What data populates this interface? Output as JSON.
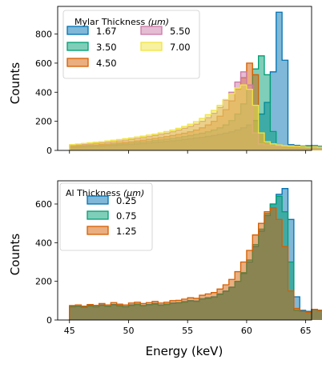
{
  "chart_data": [
    {
      "type": "area",
      "panel": "top",
      "xlabel": "",
      "ylabel": "Counts",
      "xlim": [
        44,
        65.5
      ],
      "ylim": [
        0,
        990
      ],
      "xticks": [
        45,
        50,
        55,
        60,
        65
      ],
      "yticks": [
        0,
        200,
        400,
        600,
        800
      ],
      "show_xtick_labels": false,
      "grid": false,
      "legend": {
        "title_main": "Mylar Thickness ",
        "title_unit": "(μm)",
        "placement": "top-left",
        "columns": 2
      },
      "bin_start": 45,
      "bin_width": 0.5,
      "series": [
        {
          "name": "1.67",
          "color": "#0072B2",
          "values": [
            20,
            22,
            24,
            26,
            28,
            30,
            32,
            34,
            36,
            38,
            40,
            43,
            46,
            50,
            54,
            58,
            62,
            66,
            70,
            75,
            80,
            85,
            90,
            96,
            102,
            110,
            118,
            128,
            140,
            155,
            175,
            205,
            250,
            330,
            540,
            950,
            620,
            40,
            35,
            30,
            32,
            33,
            28,
            26,
            24,
            25,
            22,
            20,
            22
          ]
        },
        {
          "name": "3.50",
          "color": "#009E73",
          "values": [
            25,
            27,
            29,
            31,
            33,
            35,
            37,
            40,
            43,
            46,
            50,
            54,
            58,
            62,
            67,
            72,
            77,
            82,
            88,
            95,
            102,
            110,
            118,
            128,
            140,
            155,
            175,
            205,
            250,
            320,
            420,
            560,
            650,
            520,
            130,
            35,
            30,
            32,
            33,
            28,
            26,
            24,
            25,
            22,
            20,
            22,
            20,
            18,
            20
          ]
        },
        {
          "name": "4.50",
          "color": "#D55E00",
          "values": [
            30,
            32,
            34,
            36,
            38,
            41,
            44,
            48,
            52,
            56,
            60,
            65,
            70,
            76,
            82,
            88,
            95,
            102,
            110,
            118,
            128,
            140,
            155,
            175,
            200,
            235,
            280,
            340,
            420,
            500,
            600,
            520,
            120,
            40,
            35,
            30,
            32,
            33,
            28,
            26,
            24,
            25,
            22,
            20,
            22,
            20,
            18,
            20,
            19
          ]
        },
        {
          "name": "5.50",
          "color": "#CC79A7",
          "values": [
            35,
            38,
            41,
            44,
            48,
            52,
            56,
            60,
            65,
            70,
            76,
            82,
            88,
            95,
            102,
            110,
            118,
            128,
            140,
            152,
            165,
            180,
            200,
            225,
            255,
            295,
            345,
            400,
            470,
            540,
            450,
            120,
            45,
            38,
            32,
            30,
            32,
            33,
            28,
            26,
            24,
            25,
            22,
            20,
            22,
            20,
            18,
            20,
            19
          ]
        },
        {
          "name": "7.00",
          "color": "#F0E442",
          "values": [
            40,
            44,
            48,
            52,
            56,
            60,
            65,
            70,
            75,
            80,
            86,
            92,
            98,
            105,
            112,
            120,
            130,
            140,
            152,
            165,
            180,
            198,
            220,
            245,
            275,
            310,
            350,
            390,
            430,
            450,
            420,
            310,
            120,
            60,
            45,
            38,
            32,
            30,
            28,
            26,
            24,
            25,
            22,
            20,
            22,
            20,
            18,
            20,
            19
          ]
        }
      ]
    },
    {
      "type": "area",
      "panel": "bottom",
      "xlabel": "Energy (keV)",
      "ylabel": "Counts",
      "xlim": [
        44,
        65.5
      ],
      "ylim": [
        0,
        720
      ],
      "xticks": [
        45,
        50,
        55,
        60,
        65
      ],
      "yticks": [
        0,
        200,
        400,
        600
      ],
      "show_xtick_labels": true,
      "grid": false,
      "legend": {
        "title_main": "Al Thickness ",
        "title_unit": "(μm)",
        "placement": "top-left",
        "columns": 1
      },
      "bin_start": 45,
      "bin_width": 0.5,
      "series": [
        {
          "name": "0.25",
          "color": "#0072B2",
          "values": [
            70,
            72,
            68,
            75,
            70,
            78,
            72,
            80,
            75,
            70,
            78,
            82,
            75,
            80,
            85,
            78,
            82,
            88,
            90,
            95,
            100,
            98,
            110,
            115,
            120,
            135,
            150,
            170,
            200,
            240,
            300,
            380,
            460,
            540,
            600,
            650,
            680,
            520,
            120,
            50,
            45,
            55,
            50,
            48,
            45,
            40,
            35,
            30,
            25
          ]
        },
        {
          "name": "0.75",
          "color": "#009E73",
          "values": [
            68,
            70,
            66,
            72,
            68,
            75,
            70,
            78,
            72,
            68,
            75,
            80,
            73,
            78,
            82,
            76,
            80,
            86,
            88,
            92,
            98,
            96,
            108,
            112,
            118,
            132,
            148,
            168,
            200,
            245,
            310,
            390,
            470,
            550,
            600,
            640,
            560,
            300,
            50,
            45,
            40,
            55,
            50,
            48,
            45,
            40,
            35,
            30,
            25
          ]
        },
        {
          "name": "1.25",
          "color": "#D55E00",
          "values": [
            75,
            78,
            72,
            80,
            76,
            85,
            78,
            90,
            82,
            78,
            88,
            92,
            85,
            90,
            96,
            88,
            92,
            100,
            102,
            108,
            115,
            112,
            128,
            135,
            142,
            160,
            182,
            210,
            250,
            300,
            360,
            440,
            500,
            560,
            580,
            520,
            380,
            150,
            60,
            45,
            40,
            55,
            50,
            48,
            45,
            40,
            35,
            30,
            25
          ]
        }
      ]
    }
  ]
}
